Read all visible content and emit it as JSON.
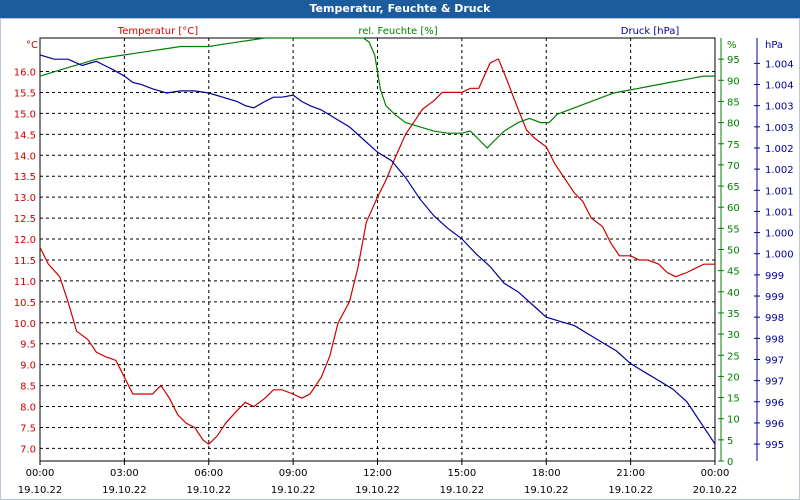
{
  "window": {
    "title": "Temperatur, Feuchte & Druck"
  },
  "colors": {
    "temperature": "#cc0000",
    "humidity": "#008000",
    "pressure": "#000099",
    "grid": "#000000",
    "axis_text": "#000000"
  },
  "chart_data": {
    "type": "line",
    "title": "Temperatur, Feuchte & Druck",
    "x_ticks": [
      {
        "t": 0,
        "time": "00:00",
        "date": "19.10.22"
      },
      {
        "t": 3,
        "time": "03:00",
        "date": "19.10.22"
      },
      {
        "t": 6,
        "time": "06:00",
        "date": "19.10.22"
      },
      {
        "t": 9,
        "time": "09:00",
        "date": "19.10.22"
      },
      {
        "t": 12,
        "time": "12:00",
        "date": "19.10.22"
      },
      {
        "t": 15,
        "time": "15:00",
        "date": "19.10.22"
      },
      {
        "t": 18,
        "time": "18:00",
        "date": "19.10.22"
      },
      {
        "t": 21,
        "time": "21:00",
        "date": "19.10.22"
      },
      {
        "t": 24,
        "time": "00:00",
        "date": "20.10.22"
      }
    ],
    "xlim": [
      0,
      24
    ],
    "axes": {
      "temperature": {
        "label": "Temperatur [°C]",
        "unit": "°C",
        "ylim": [
          6.7,
          16.8
        ],
        "ticks": [
          "7.0",
          "7.5",
          "8.0",
          "8.5",
          "9.0",
          "9.5",
          "10.0",
          "10.5",
          "11.0",
          "11.5",
          "12.0",
          "12.5",
          "13.0",
          "13.5",
          "14.0",
          "14.5",
          "15.0",
          "15.5",
          "16.0"
        ],
        "tick_values": [
          7.0,
          7.5,
          8.0,
          8.5,
          9.0,
          9.5,
          10.0,
          10.5,
          11.0,
          11.5,
          12.0,
          12.5,
          13.0,
          13.5,
          14.0,
          14.5,
          15.0,
          15.5,
          16.0
        ]
      },
      "humidity": {
        "label": "rel. Feuchte [%]",
        "unit": "%",
        "ylim": [
          0,
          100
        ],
        "ticks": [
          "0",
          "5",
          "10",
          "15",
          "20",
          "25",
          "30",
          "35",
          "40",
          "45",
          "50",
          "55",
          "60",
          "65",
          "70",
          "75",
          "80",
          "85",
          "90",
          "95"
        ],
        "tick_values": [
          0,
          5,
          10,
          15,
          20,
          25,
          30,
          35,
          40,
          45,
          50,
          55,
          60,
          65,
          70,
          75,
          80,
          85,
          90,
          95
        ]
      },
      "pressure": {
        "label": "Druck [hPa]",
        "unit": "hPa",
        "ylim": [
          994.6,
          1004.6
        ],
        "ticks": [
          "995",
          "996",
          "996",
          "997",
          "997",
          "998",
          "998",
          "999",
          "999",
          "1.000",
          "1.000",
          "1.001",
          "1.001",
          "1.002",
          "1.002",
          "1.003",
          "1.003",
          "1.004",
          "1.004"
        ],
        "tick_values": [
          995,
          995.5,
          996,
          996.5,
          997,
          997.5,
          998,
          998.5,
          999,
          999.5,
          1000,
          1000.5,
          1001,
          1001.5,
          1002,
          1002.5,
          1003,
          1003.5,
          1004
        ]
      }
    },
    "series": [
      {
        "name": "Temperatur",
        "axis": "temperature",
        "color": "#cc0000",
        "x": [
          0,
          0.3,
          0.7,
          1,
          1.3,
          1.7,
          2,
          2.3,
          2.7,
          3,
          3.3,
          3.6,
          4,
          4.3,
          4.6,
          4.9,
          5.2,
          5.5,
          5.8,
          6,
          6.3,
          6.6,
          7,
          7.3,
          7.6,
          8,
          8.3,
          8.6,
          9,
          9.3,
          9.6,
          10,
          10.3,
          10.6,
          11,
          11.3,
          11.6,
          12,
          12.3,
          12.6,
          13,
          13.3,
          13.6,
          14,
          14.3,
          14.6,
          15,
          15.3,
          15.6,
          16,
          16.3,
          16.6,
          17,
          17.3,
          17.6,
          18,
          18.3,
          18.6,
          19,
          19.3,
          19.6,
          20,
          20.3,
          20.6,
          21,
          21.3,
          21.6,
          22,
          22.3,
          22.6,
          23,
          23.3,
          23.6,
          24
        ],
        "values": [
          11.8,
          11.4,
          11.1,
          10.5,
          9.8,
          9.6,
          9.3,
          9.2,
          9.1,
          8.7,
          8.3,
          8.3,
          8.3,
          8.5,
          8.2,
          7.8,
          7.6,
          7.5,
          7.2,
          7.1,
          7.3,
          7.6,
          7.9,
          8.1,
          8.0,
          8.2,
          8.4,
          8.4,
          8.3,
          8.2,
          8.3,
          8.7,
          9.2,
          10.0,
          10.5,
          11.3,
          12.4,
          13.0,
          13.4,
          13.9,
          14.5,
          14.8,
          15.1,
          15.3,
          15.5,
          15.5,
          15.5,
          15.6,
          15.6,
          16.2,
          16.3,
          15.8,
          15.1,
          14.6,
          14.4,
          14.2,
          13.8,
          13.5,
          13.1,
          12.9,
          12.5,
          12.3,
          11.9,
          11.6,
          11.6,
          11.5,
          11.5,
          11.4,
          11.2,
          11.1,
          11.2,
          11.3,
          11.4,
          11.4
        ]
      },
      {
        "name": "rel. Feuchte",
        "axis": "humidity",
        "color": "#008000",
        "x": [
          0,
          0.5,
          1,
          1.5,
          2,
          2.5,
          3,
          3.5,
          4,
          4.5,
          5,
          5.5,
          6,
          6.5,
          7,
          7.5,
          8,
          8.5,
          9,
          9.5,
          10,
          10.5,
          11,
          11.5,
          11.7,
          11.9,
          12.1,
          12.3,
          12.6,
          13,
          13.5,
          14,
          14.5,
          15,
          15.3,
          15.6,
          15.9,
          16.2,
          16.5,
          17,
          17.4,
          17.8,
          18.1,
          18.4,
          18.8,
          19.2,
          19.6,
          20,
          20.4,
          20.8,
          21.2,
          21.6,
          22,
          22.4,
          22.8,
          23.2,
          23.6,
          24
        ],
        "values": [
          91,
          92,
          93,
          94,
          95,
          95.5,
          96,
          96.5,
          97,
          97.5,
          98,
          98,
          98,
          98.5,
          99,
          99.5,
          100,
          100,
          100,
          100,
          100,
          100,
          100,
          100,
          99,
          96,
          88,
          84,
          82,
          80,
          79,
          78,
          77.5,
          77.5,
          78,
          76,
          74,
          76,
          78,
          80,
          81,
          80,
          80,
          82,
          83,
          84,
          85,
          86,
          87,
          87.5,
          88,
          88.5,
          89,
          89.5,
          90,
          90.5,
          91,
          91
        ]
      },
      {
        "name": "Druck",
        "axis": "pressure",
        "color": "#000099",
        "x": [
          0,
          0.5,
          1,
          1.5,
          2,
          2.3,
          2.6,
          3,
          3.3,
          3.6,
          4,
          4.5,
          5,
          5.5,
          6,
          6.5,
          7,
          7.3,
          7.6,
          8,
          8.3,
          8.6,
          9,
          9.3,
          9.6,
          10,
          10.5,
          11,
          11.5,
          12,
          12.5,
          13,
          13.5,
          14,
          14.5,
          15,
          15.5,
          16,
          16.5,
          17,
          17.5,
          18,
          18.5,
          19,
          19.5,
          20,
          20.5,
          21,
          21.5,
          22,
          22.5,
          23,
          23.3,
          23.6,
          24
        ],
        "values": [
          1004.2,
          1004.1,
          1004.1,
          1003.95,
          1004.05,
          1003.95,
          1003.85,
          1003.7,
          1003.55,
          1003.5,
          1003.4,
          1003.3,
          1003.35,
          1003.35,
          1003.3,
          1003.2,
          1003.1,
          1003.0,
          1002.95,
          1003.1,
          1003.2,
          1003.2,
          1003.25,
          1003.1,
          1003.0,
          1002.9,
          1002.7,
          1002.5,
          1002.2,
          1001.9,
          1001.7,
          1001.3,
          1000.8,
          1000.4,
          1000.1,
          999.85,
          999.5,
          999.2,
          998.8,
          998.6,
          998.3,
          998.0,
          997.9,
          997.8,
          997.6,
          997.4,
          997.2,
          996.9,
          996.7,
          996.5,
          996.3,
          996.0,
          995.7,
          995.4,
          995.0
        ]
      }
    ]
  }
}
